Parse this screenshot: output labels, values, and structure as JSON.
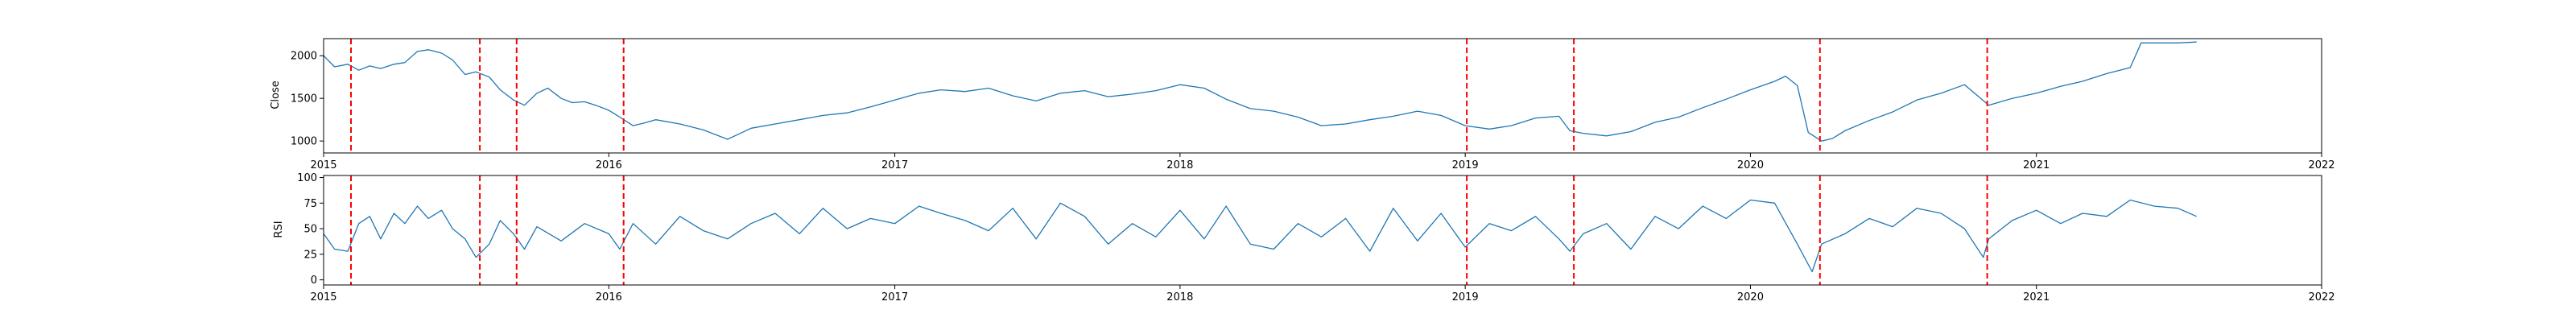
{
  "chart_data": [
    {
      "type": "line",
      "title": "",
      "xlabel": "",
      "ylabel": "Close",
      "xlim": [
        "2015-01-01",
        "2022-01-01"
      ],
      "ylim": [
        860,
        2200
      ],
      "xticks": [
        "2015",
        "2016",
        "2017",
        "2018",
        "2019",
        "2020",
        "2021",
        "2022"
      ],
      "yticks": [
        1000,
        1500,
        2000
      ],
      "grid": false,
      "line_color": "#1f77b4",
      "signal_color": "#ff0000",
      "signal_dates": [
        "2015-02-05",
        "2015-07-20",
        "2015-09-05",
        "2016-01-20",
        "2019-01-03",
        "2019-05-20",
        "2020-03-30",
        "2020-10-30"
      ],
      "series": [
        {
          "x": [
            "2015-01-01",
            "2015-01-15",
            "2015-02-01",
            "2015-02-15",
            "2015-03-01",
            "2015-03-15",
            "2015-04-01",
            "2015-04-15",
            "2015-05-01",
            "2015-05-15",
            "2015-06-01",
            "2015-06-15",
            "2015-07-01",
            "2015-07-15",
            "2015-08-01",
            "2015-08-15",
            "2015-09-01",
            "2015-09-15",
            "2015-10-01",
            "2015-10-15",
            "2015-11-01",
            "2015-11-15",
            "2015-12-01",
            "2015-12-15",
            "2016-01-01",
            "2016-01-15",
            "2016-02-01",
            "2016-02-15",
            "2016-03-01",
            "2016-04-01",
            "2016-05-01",
            "2016-06-01",
            "2016-06-15",
            "2016-07-01",
            "2016-08-01",
            "2016-09-01",
            "2016-10-01",
            "2016-11-01",
            "2016-12-01",
            "2017-01-01",
            "2017-02-01",
            "2017-03-01",
            "2017-04-01",
            "2017-05-01",
            "2017-06-01",
            "2017-07-01",
            "2017-08-01",
            "2017-09-01",
            "2017-10-01",
            "2017-11-01",
            "2017-12-01",
            "2018-01-01",
            "2018-02-01",
            "2018-03-01",
            "2018-04-01",
            "2018-05-01",
            "2018-06-01",
            "2018-07-01",
            "2018-08-01",
            "2018-09-01",
            "2018-10-01",
            "2018-11-01",
            "2018-12-01",
            "2019-01-01",
            "2019-02-01",
            "2019-03-01",
            "2019-04-01",
            "2019-05-01",
            "2019-05-15",
            "2019-06-01",
            "2019-07-01",
            "2019-08-01",
            "2019-09-01",
            "2019-10-01",
            "2019-11-01",
            "2019-12-01",
            "2020-01-01",
            "2020-02-01",
            "2020-02-15",
            "2020-03-01",
            "2020-03-15",
            "2020-04-01",
            "2020-04-15",
            "2020-05-01",
            "2020-06-01",
            "2020-07-01",
            "2020-08-01",
            "2020-09-01",
            "2020-10-01",
            "2020-11-01",
            "2020-12-01",
            "2021-01-01",
            "2021-02-01",
            "2021-03-01",
            "2021-04-01",
            "2021-05-01",
            "2021-05-15",
            "2021-06-01",
            "2021-07-01",
            "2021-07-25"
          ],
          "y": [
            2000,
            1870,
            1900,
            1830,
            1880,
            1850,
            1900,
            1920,
            2050,
            2070,
            2030,
            1950,
            1780,
            1810,
            1750,
            1600,
            1480,
            1420,
            1560,
            1620,
            1500,
            1450,
            1460,
            1420,
            1360,
            1280,
            1180,
            1210,
            1250,
            1200,
            1130,
            1020,
            1080,
            1150,
            1200,
            1250,
            1300,
            1330,
            1400,
            1480,
            1560,
            1600,
            1580,
            1620,
            1530,
            1470,
            1560,
            1590,
            1520,
            1550,
            1590,
            1660,
            1620,
            1490,
            1380,
            1350,
            1280,
            1180,
            1200,
            1250,
            1290,
            1350,
            1300,
            1180,
            1140,
            1180,
            1270,
            1290,
            1120,
            1090,
            1060,
            1110,
            1220,
            1280,
            1390,
            1490,
            1600,
            1700,
            1760,
            1650,
            1100,
            1000,
            1030,
            1120,
            1240,
            1340,
            1480,
            1560,
            1660,
            1420,
            1500,
            1560,
            1640,
            1700,
            1790,
            1860,
            2150,
            2150,
            2150,
            2160
          ]
        }
      ]
    },
    {
      "type": "line",
      "title": "",
      "xlabel": "",
      "ylabel": "RSI",
      "xlim": [
        "2015-01-01",
        "2022-01-01"
      ],
      "ylim": [
        -5,
        102
      ],
      "xticks": [
        "2015",
        "2016",
        "2017",
        "2018",
        "2019",
        "2020",
        "2021",
        "2022"
      ],
      "yticks": [
        0,
        25,
        50,
        75,
        100
      ],
      "grid": false,
      "line_color": "#1f77b4",
      "signal_color": "#ff0000",
      "signal_dates": [
        "2015-02-05",
        "2015-07-20",
        "2015-09-05",
        "2016-01-20",
        "2019-01-03",
        "2019-05-20",
        "2020-03-30",
        "2020-10-30"
      ],
      "series": [
        {
          "x": [
            "2015-01-01",
            "2015-01-15",
            "2015-02-01",
            "2015-02-15",
            "2015-03-01",
            "2015-03-15",
            "2015-04-01",
            "2015-04-15",
            "2015-05-01",
            "2015-05-15",
            "2015-06-01",
            "2015-06-15",
            "2015-07-01",
            "2015-07-15",
            "2015-08-01",
            "2015-08-15",
            "2015-09-01",
            "2015-09-15",
            "2015-10-01",
            "2015-11-01",
            "2015-12-01",
            "2016-01-01",
            "2016-01-15",
            "2016-02-01",
            "2016-03-01",
            "2016-04-01",
            "2016-05-01",
            "2016-06-01",
            "2016-07-01",
            "2016-08-01",
            "2016-09-01",
            "2016-10-01",
            "2016-11-01",
            "2016-12-01",
            "2017-01-01",
            "2017-02-01",
            "2017-03-01",
            "2017-04-01",
            "2017-05-01",
            "2017-06-01",
            "2017-07-01",
            "2017-08-01",
            "2017-09-01",
            "2017-10-01",
            "2017-11-01",
            "2017-12-01",
            "2018-01-01",
            "2018-02-01",
            "2018-03-01",
            "2018-04-01",
            "2018-05-01",
            "2018-06-01",
            "2018-07-01",
            "2018-08-01",
            "2018-09-01",
            "2018-10-01",
            "2018-11-01",
            "2018-12-01",
            "2019-01-01",
            "2019-02-01",
            "2019-03-01",
            "2019-04-01",
            "2019-05-01",
            "2019-05-15",
            "2019-06-01",
            "2019-07-01",
            "2019-08-01",
            "2019-09-01",
            "2019-10-01",
            "2019-11-01",
            "2019-12-01",
            "2020-01-01",
            "2020-02-01",
            "2020-03-01",
            "2020-03-20",
            "2020-04-01",
            "2020-05-01",
            "2020-06-01",
            "2020-07-01",
            "2020-08-01",
            "2020-09-01",
            "2020-10-01",
            "2020-10-25",
            "2020-11-01",
            "2020-12-01",
            "2021-01-01",
            "2021-02-01",
            "2021-03-01",
            "2021-04-01",
            "2021-05-01",
            "2021-06-01",
            "2021-07-01",
            "2021-07-25"
          ],
          "y": [
            45,
            30,
            28,
            55,
            62,
            40,
            65,
            55,
            72,
            60,
            68,
            50,
            40,
            22,
            35,
            58,
            45,
            30,
            52,
            38,
            55,
            45,
            30,
            55,
            35,
            62,
            48,
            40,
            55,
            65,
            45,
            70,
            50,
            60,
            55,
            72,
            65,
            58,
            48,
            70,
            40,
            75,
            62,
            35,
            55,
            42,
            68,
            40,
            72,
            35,
            30,
            55,
            42,
            60,
            28,
            70,
            38,
            65,
            32,
            55,
            48,
            62,
            40,
            28,
            45,
            55,
            30,
            62,
            50,
            72,
            60,
            78,
            75,
            35,
            8,
            35,
            45,
            60,
            52,
            70,
            65,
            50,
            22,
            40,
            58,
            68,
            55,
            65,
            62,
            78,
            72,
            70,
            62
          ]
        }
      ]
    }
  ]
}
